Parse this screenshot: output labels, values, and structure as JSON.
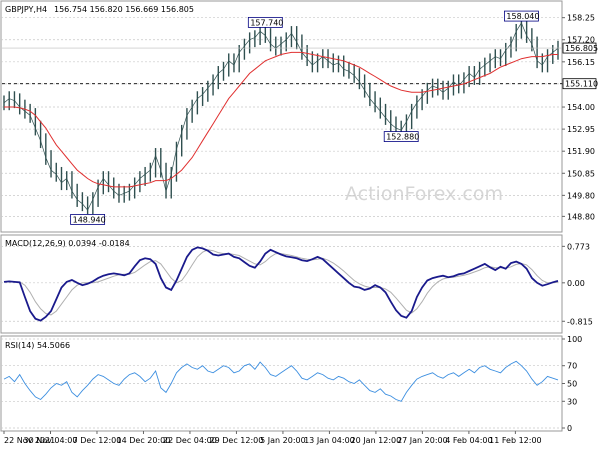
{
  "chart_data": [
    {
      "type": "candlestick",
      "title": "GBPJPY,H4",
      "quote": "156.754 156.820 156.669 156.805",
      "watermark": "ActionForex.com",
      "yticks": [
        "158.25",
        "157.20",
        "156.15",
        "155.10",
        "154.00",
        "152.95",
        "151.90",
        "150.85",
        "149.80",
        "148.80"
      ],
      "ytick_values": [
        158.25,
        157.2,
        156.15,
        155.1,
        154.0,
        152.95,
        151.9,
        150.85,
        149.8,
        148.8
      ],
      "ylim": [
        148.2,
        158.9
      ],
      "current_price_label": "156.805",
      "current_price": 156.805,
      "level_label": "155.110",
      "level": 155.11,
      "annotations": [
        {
          "text": "157.740",
          "index": 50,
          "value": 157.74
        },
        {
          "text": "158.040",
          "index": 99,
          "value": 158.04
        },
        {
          "text": "152.880",
          "index": 76,
          "value": 152.88
        },
        {
          "text": "148.940",
          "index": 16,
          "value": 148.94
        }
      ],
      "series": [
        {
          "name": "price",
          "values": [
            154.2,
            154.4,
            154.3,
            154.0,
            153.8,
            153.6,
            153.0,
            152.4,
            151.6,
            151.0,
            150.8,
            150.4,
            150.6,
            150.0,
            149.6,
            149.4,
            149.1,
            149.6,
            150.2,
            150.6,
            150.3,
            150.0,
            149.8,
            149.9,
            150.0,
            150.3,
            150.6,
            150.8,
            151.0,
            151.7,
            151.0,
            150.0,
            150.8,
            152.0,
            152.8,
            153.6,
            154.0,
            154.4,
            154.6,
            154.9,
            155.2,
            155.6,
            155.8,
            156.2,
            156.0,
            156.6,
            156.9,
            157.2,
            157.3,
            157.6,
            157.4,
            157.0,
            156.8,
            157.0,
            157.2,
            157.5,
            157.1,
            156.6,
            156.3,
            156.0,
            156.2,
            156.4,
            156.2,
            156.0,
            156.1,
            155.8,
            155.7,
            155.5,
            155.2,
            154.8,
            154.4,
            154.1,
            153.8,
            153.5,
            153.2,
            153.0,
            152.9,
            153.3,
            153.8,
            154.2,
            154.5,
            154.8,
            155.0,
            154.9,
            154.7,
            154.9,
            155.2,
            155.0,
            155.3,
            155.6,
            155.4,
            155.8,
            156.0,
            156.2,
            156.4,
            156.3,
            156.7,
            157.0,
            157.6,
            158.0,
            157.4,
            157.0,
            156.2,
            156.0,
            156.4,
            156.6,
            156.8
          ]
        },
        {
          "name": "moving average",
          "values": [
            154.0,
            154.0,
            154.0,
            153.96,
            153.9,
            153.8,
            153.6,
            153.3,
            153.0,
            152.6,
            152.2,
            151.9,
            151.6,
            151.3,
            151.0,
            150.8,
            150.6,
            150.45,
            150.35,
            150.3,
            150.25,
            150.2,
            150.2,
            150.2,
            150.2,
            150.25,
            150.3,
            150.35,
            150.4,
            150.5,
            150.5,
            150.5,
            150.6,
            150.8,
            151.0,
            151.3,
            151.6,
            152.0,
            152.4,
            152.8,
            153.2,
            153.6,
            154.0,
            154.4,
            154.7,
            155.0,
            155.3,
            155.6,
            155.8,
            156.0,
            156.2,
            156.3,
            156.4,
            156.5,
            156.55,
            156.6,
            156.6,
            156.6,
            156.55,
            156.5,
            156.45,
            156.4,
            156.35,
            156.3,
            156.25,
            156.2,
            156.1,
            156.0,
            155.9,
            155.75,
            155.6,
            155.45,
            155.3,
            155.15,
            155.0,
            154.9,
            154.8,
            154.75,
            154.7,
            154.7,
            154.7,
            154.75,
            154.8,
            154.85,
            154.9,
            154.95,
            155.0,
            155.05,
            155.1,
            155.2,
            155.3,
            155.4,
            155.5,
            155.6,
            155.75,
            155.9,
            156.0,
            156.1,
            156.2,
            156.3,
            156.35,
            156.4,
            156.4,
            156.4,
            156.45,
            156.5,
            156.5
          ]
        }
      ]
    },
    {
      "type": "line",
      "title": "MACD(12,26,9) 0.0394 -0.0184",
      "yticks": [
        "0.773",
        "0.00",
        "-0.815"
      ],
      "ytick_values": [
        0.773,
        0.0,
        -0.815
      ],
      "ylim": [
        -1.0,
        0.95
      ],
      "current_label": "0.00",
      "series": [
        {
          "name": "macd",
          "values": [
            0.02,
            0.03,
            0.02,
            0.01,
            -0.3,
            -0.6,
            -0.76,
            -0.8,
            -0.72,
            -0.6,
            -0.35,
            -0.1,
            0.02,
            0.06,
            0.0,
            -0.05,
            -0.02,
            0.03,
            0.1,
            0.15,
            0.18,
            0.2,
            0.18,
            0.16,
            0.2,
            0.35,
            0.48,
            0.52,
            0.5,
            0.4,
            0.1,
            -0.1,
            -0.15,
            0.05,
            0.3,
            0.55,
            0.7,
            0.75,
            0.73,
            0.68,
            0.6,
            0.58,
            0.6,
            0.62,
            0.55,
            0.52,
            0.44,
            0.36,
            0.32,
            0.45,
            0.62,
            0.7,
            0.65,
            0.6,
            0.56,
            0.54,
            0.52,
            0.48,
            0.46,
            0.5,
            0.55,
            0.5,
            0.4,
            0.3,
            0.2,
            0.1,
            0.0,
            -0.08,
            -0.1,
            -0.15,
            -0.12,
            -0.05,
            -0.1,
            -0.2,
            -0.4,
            -0.58,
            -0.7,
            -0.74,
            -0.6,
            -0.3,
            -0.1,
            0.05,
            0.1,
            0.13,
            0.15,
            0.12,
            0.14,
            0.18,
            0.2,
            0.25,
            0.3,
            0.35,
            0.4,
            0.33,
            0.27,
            0.34,
            0.3,
            0.42,
            0.45,
            0.4,
            0.3,
            0.1,
            0.0,
            -0.06,
            -0.03,
            0.01,
            0.04
          ]
        },
        {
          "name": "signal",
          "values": [
            0.02,
            0.02,
            0.02,
            0.02,
            -0.05,
            -0.2,
            -0.4,
            -0.55,
            -0.65,
            -0.68,
            -0.6,
            -0.45,
            -0.3,
            -0.15,
            -0.05,
            0.0,
            0.0,
            0.0,
            0.02,
            0.06,
            0.1,
            0.14,
            0.17,
            0.18,
            0.18,
            0.22,
            0.3,
            0.38,
            0.45,
            0.47,
            0.4,
            0.25,
            0.1,
            0.0,
            0.05,
            0.2,
            0.38,
            0.55,
            0.65,
            0.7,
            0.68,
            0.64,
            0.62,
            0.62,
            0.6,
            0.58,
            0.52,
            0.46,
            0.4,
            0.38,
            0.45,
            0.55,
            0.62,
            0.62,
            0.6,
            0.58,
            0.55,
            0.52,
            0.5,
            0.49,
            0.5,
            0.52,
            0.48,
            0.42,
            0.34,
            0.25,
            0.15,
            0.05,
            -0.02,
            -0.07,
            -0.1,
            -0.1,
            -0.1,
            -0.13,
            -0.2,
            -0.32,
            -0.45,
            -0.58,
            -0.64,
            -0.55,
            -0.4,
            -0.22,
            -0.08,
            0.02,
            0.08,
            0.11,
            0.12,
            0.14,
            0.16,
            0.19,
            0.23,
            0.27,
            0.32,
            0.34,
            0.32,
            0.32,
            0.31,
            0.34,
            0.39,
            0.41,
            0.38,
            0.28,
            0.15,
            0.05,
            0.0,
            0.0,
            0.01
          ]
        }
      ]
    },
    {
      "type": "line",
      "title": "RSI(14) 54.5066",
      "yticks": [
        "100",
        "70",
        "50",
        "30",
        "0"
      ],
      "ytick_values": [
        100,
        70,
        50,
        30,
        0
      ],
      "ylim": [
        0,
        100
      ],
      "series": [
        {
          "name": "rsi",
          "values": [
            55,
            58,
            52,
            60,
            50,
            42,
            35,
            32,
            38,
            45,
            50,
            48,
            52,
            40,
            35,
            42,
            48,
            55,
            60,
            58,
            54,
            50,
            48,
            55,
            60,
            62,
            58,
            52,
            56,
            64,
            45,
            40,
            50,
            62,
            68,
            72,
            68,
            66,
            70,
            64,
            62,
            66,
            70,
            68,
            62,
            64,
            70,
            72,
            66,
            74,
            68,
            60,
            58,
            62,
            66,
            70,
            64,
            56,
            54,
            58,
            62,
            60,
            56,
            54,
            58,
            56,
            52,
            50,
            54,
            48,
            42,
            40,
            44,
            38,
            36,
            32,
            30,
            40,
            48,
            55,
            58,
            60,
            62,
            58,
            56,
            60,
            62,
            58,
            62,
            66,
            62,
            68,
            70,
            66,
            64,
            62,
            68,
            72,
            75,
            70,
            64,
            55,
            48,
            52,
            58,
            56,
            54
          ]
        }
      ]
    }
  ],
  "x_ticks": [
    {
      "label": "22 Nov 2021",
      "index": 0
    },
    {
      "label": "30 Nov 04:00",
      "index": 12
    },
    {
      "label": "7 Dec 12:00",
      "index": 24
    },
    {
      "label": "14 Dec 20:00",
      "index": 36
    },
    {
      "label": "22 Dec 04:00",
      "index": 48
    },
    {
      "label": "29 Dec 12:00",
      "index": 60
    },
    {
      "label": "5 Jan 20:00",
      "index": 72
    },
    {
      "label": "13 Jan 04:00",
      "index": 84
    },
    {
      "label": "20 Jan 12:00",
      "index": 96
    },
    {
      "label": "27 Jan 20:00",
      "index": 108
    },
    {
      "label": "4 Feb 04:00",
      "index": 120
    },
    {
      "label": "11 Feb 12:00",
      "index": 132
    }
  ],
  "colors": {
    "price": "#2f4f4f",
    "ma": "#e03030",
    "macd": "#1a1a8c",
    "signal": "#b0b0b0",
    "rsi": "#3d8fe0",
    "grid": "#c8c8c8",
    "frame": "#999999",
    "annotation": "#000080"
  }
}
